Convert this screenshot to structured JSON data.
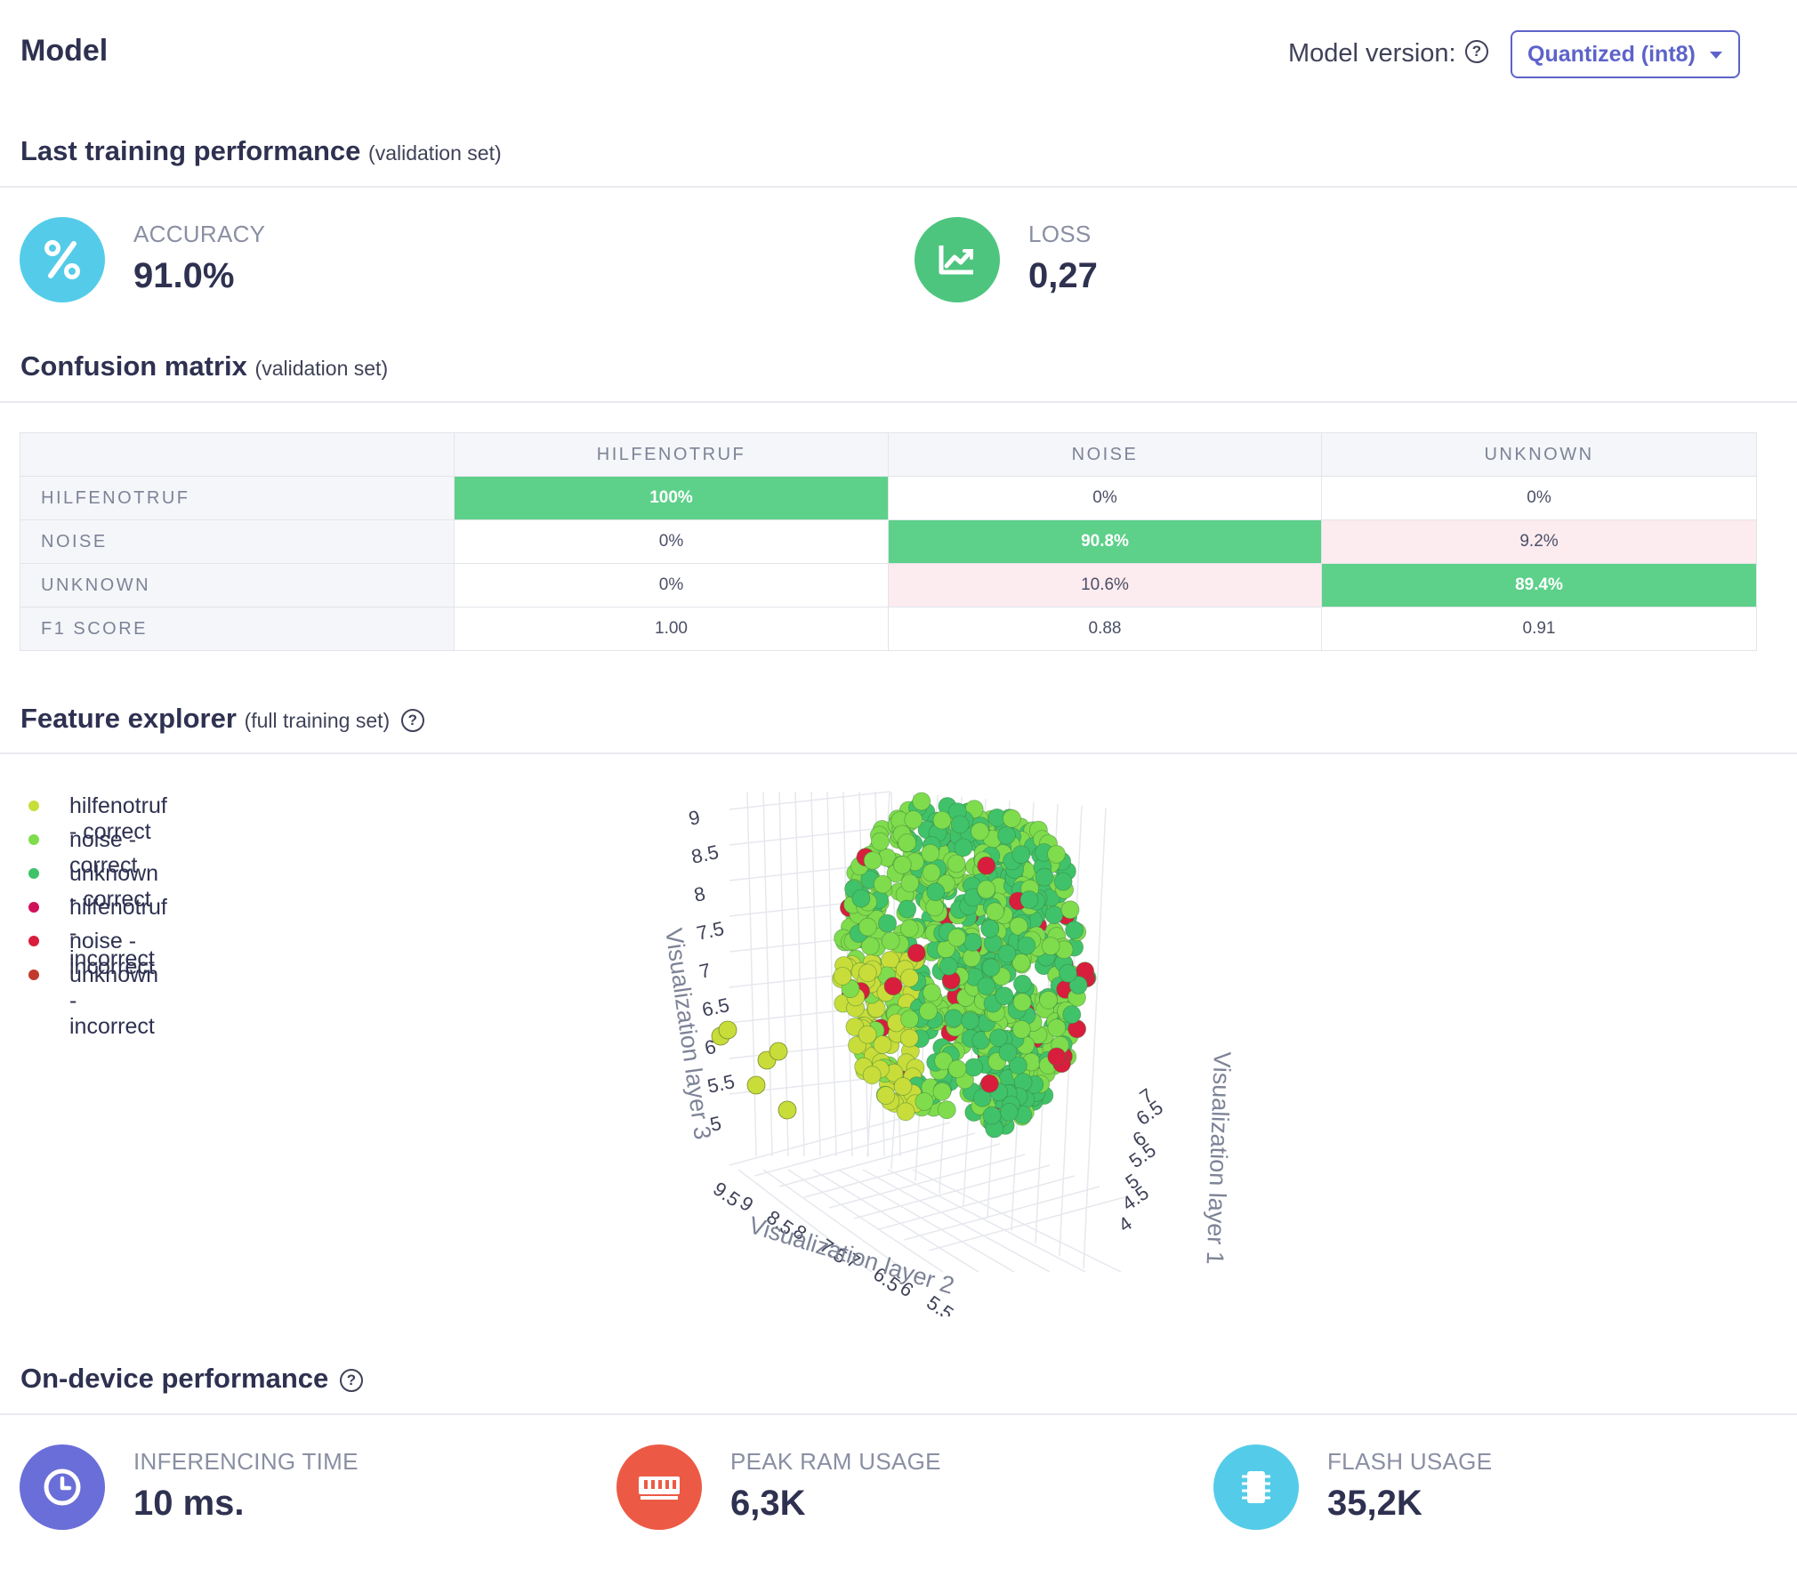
{
  "header": {
    "title": "Model",
    "model_version_label": "Model version:",
    "model_version_value": "Quantized (int8)"
  },
  "training": {
    "title": "Last training performance",
    "subtitle": "(validation set)",
    "accuracy_label": "ACCURACY",
    "accuracy_value": "91.0%",
    "loss_label": "LOSS",
    "loss_value": "0,27"
  },
  "confusion": {
    "title": "Confusion matrix",
    "subtitle": "(validation set)",
    "columns": [
      "HILFENOTRUF",
      "NOISE",
      "UNKNOWN"
    ],
    "rows": [
      {
        "label": "HILFENOTRUF",
        "cells": [
          "100%",
          "0%",
          "0%"
        ]
      },
      {
        "label": "NOISE",
        "cells": [
          "0%",
          "90.8%",
          "9.2%"
        ]
      },
      {
        "label": "UNKNOWN",
        "cells": [
          "0%",
          "10.6%",
          "89.4%"
        ]
      },
      {
        "label": "F1 SCORE",
        "cells": [
          "1.00",
          "0.88",
          "0.91"
        ]
      }
    ]
  },
  "explorer": {
    "title": "Feature explorer",
    "subtitle": "(full training set)",
    "legend": [
      {
        "label": "hilfenotruf - correct",
        "color": "#c8dd3a"
      },
      {
        "label": "noise - correct",
        "color": "#7fdc4c"
      },
      {
        "label": "unknown - correct",
        "color": "#3fc26a"
      },
      {
        "label": "hilfenotruf - incorrect",
        "color": "#d0105a"
      },
      {
        "label": "noise - incorrect",
        "color": "#d81e3c"
      },
      {
        "label": "unknown - incorrect",
        "color": "#c0392b"
      }
    ],
    "axis_titles": {
      "z": "Visualization layer 3",
      "x": "Visualization layer 2",
      "y": "Visualization layer 1"
    },
    "z_ticks": [
      "9",
      "8.5",
      "8",
      "7.5",
      "7",
      "6.5",
      "6",
      "5.5",
      "5"
    ],
    "x_ticks": [
      "9.5",
      "9",
      "8.5",
      "8",
      "7.5",
      "7",
      "6.5",
      "6",
      "5.5"
    ],
    "y_ticks": [
      "7",
      "6.5",
      "6",
      "5.5",
      "5",
      "4.5",
      "4"
    ]
  },
  "ondevice": {
    "title": "On-device performance",
    "inferencing_label": "INFERENCING TIME",
    "inferencing_value": "10 ms.",
    "ram_label": "PEAK RAM USAGE",
    "ram_value": "6,3K",
    "flash_label": "FLASH USAGE",
    "flash_value": "35,2K"
  }
}
